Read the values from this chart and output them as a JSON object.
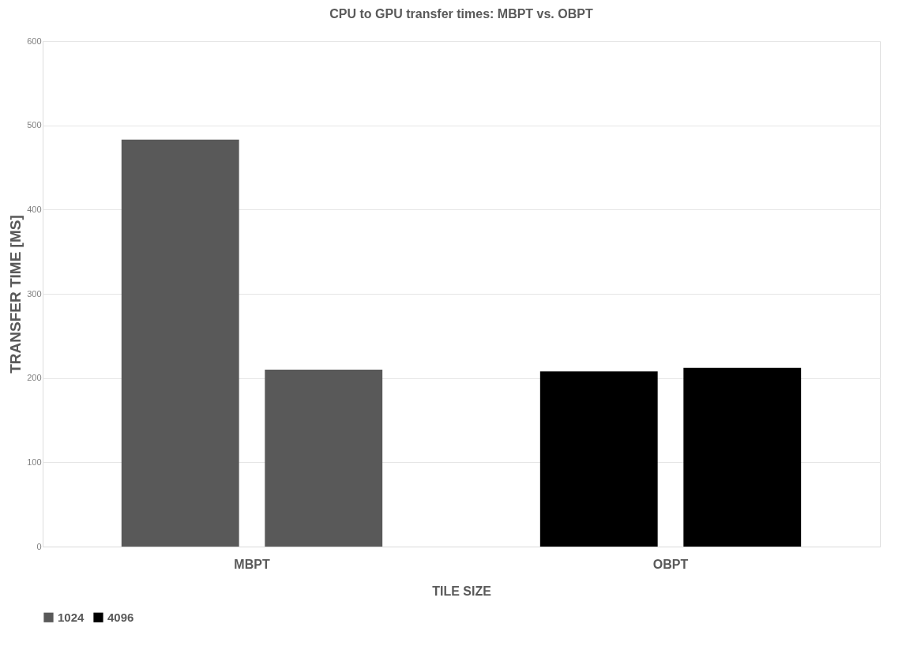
{
  "chart_data": {
    "type": "bar",
    "title": "CPU to GPU transfer times: MBPT vs. OBPT",
    "xlabel": "TILE SIZE",
    "ylabel": "TRANSFER TIME [MS]",
    "categories": [
      "MBPT",
      "OBPT"
    ],
    "series": [
      {
        "name": "1024",
        "color": "#595959",
        "colors": [
          "#595959",
          "#000000"
        ],
        "values": [
          483,
          208
        ]
      },
      {
        "name": "4096",
        "color": "#000000",
        "colors": [
          "#595959",
          "#000000"
        ],
        "values": [
          210,
          212
        ]
      }
    ],
    "ylim": [
      0,
      600
    ],
    "yticks": [
      0,
      100,
      200,
      300,
      400,
      500,
      600
    ],
    "grid": "y",
    "legend": "bottom"
  }
}
